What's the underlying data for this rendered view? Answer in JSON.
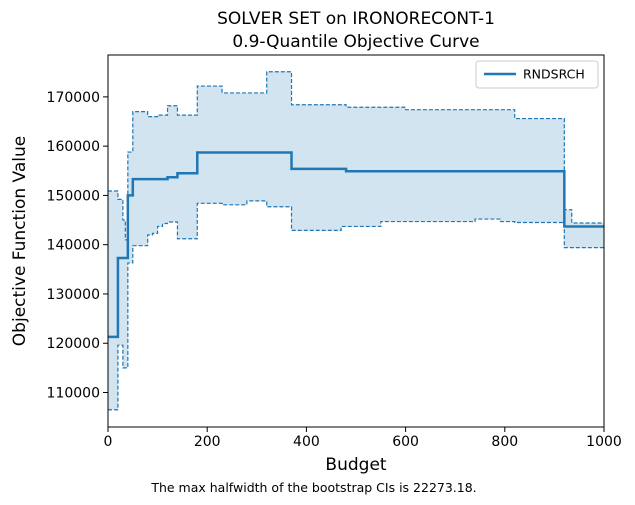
{
  "caption": "The max halfwidth of the bootstrap CIs is 22273.18.",
  "chart_data": {
    "type": "line",
    "step": true,
    "title": "SOLVER SET on IRONORECONT-1",
    "subtitle": "0.9-Quantile Objective Curve",
    "xlabel": "Budget",
    "ylabel": "Objective Function Value",
    "xlim": [
      0,
      1000
    ],
    "ylim": [
      103000,
      178500
    ],
    "xticks": [
      0,
      200,
      400,
      600,
      800,
      1000
    ],
    "yticks": [
      110000,
      120000,
      130000,
      140000,
      150000,
      160000,
      170000
    ],
    "grid": false,
    "legend_position": "top-right",
    "colors": {
      "series": "#1f77b4",
      "band": "#1f77b4"
    },
    "series": [
      {
        "name": "RNDSRCH",
        "x": [
          0,
          20,
          20,
          40,
          40,
          50,
          50,
          120,
          120,
          140,
          140,
          180,
          180,
          370,
          370,
          480,
          480,
          920,
          920,
          1000
        ],
        "y": [
          121300,
          121300,
          137300,
          137300,
          150000,
          150000,
          153300,
          153300,
          153700,
          153700,
          154500,
          154500,
          158700,
          158700,
          155400,
          155400,
          154900,
          154900,
          143700,
          143700
        ]
      }
    ],
    "ci_upper": {
      "x": [
        0,
        20,
        20,
        30,
        30,
        35,
        35,
        40,
        40,
        50,
        50,
        80,
        80,
        100,
        100,
        120,
        120,
        140,
        140,
        180,
        180,
        230,
        230,
        320,
        320,
        370,
        370,
        480,
        480,
        600,
        600,
        820,
        820,
        920,
        920,
        935,
        935,
        1000
      ],
      "y": [
        150900,
        150900,
        149200,
        149200,
        145000,
        145000,
        141000,
        141000,
        158800,
        158800,
        167000,
        167000,
        166000,
        166000,
        166300,
        166300,
        168200,
        168200,
        166300,
        166300,
        172200,
        172200,
        170800,
        170800,
        175100,
        175100,
        168400,
        168400,
        167900,
        167900,
        167400,
        167400,
        165600,
        165600,
        147100,
        147100,
        144400,
        144400
      ]
    },
    "ci_lower": {
      "x": [
        0,
        20,
        20,
        30,
        30,
        40,
        40,
        50,
        50,
        80,
        80,
        90,
        90,
        100,
        100,
        110,
        110,
        120,
        120,
        140,
        140,
        180,
        180,
        230,
        230,
        280,
        280,
        320,
        320,
        370,
        370,
        470,
        470,
        550,
        550,
        740,
        740,
        790,
        790,
        820,
        820,
        920,
        920,
        1000
      ],
      "y": [
        106500,
        106500,
        119600,
        119600,
        115000,
        115000,
        136300,
        136300,
        139800,
        139800,
        142000,
        142000,
        142300,
        142300,
        143700,
        143700,
        144300,
        144300,
        144600,
        144600,
        141200,
        141200,
        148400,
        148400,
        148100,
        148100,
        148900,
        148900,
        147700,
        147700,
        142900,
        142900,
        143700,
        143700,
        144700,
        144700,
        145200,
        145200,
        144700,
        144700,
        144500,
        144500,
        139400,
        139400
      ]
    }
  }
}
